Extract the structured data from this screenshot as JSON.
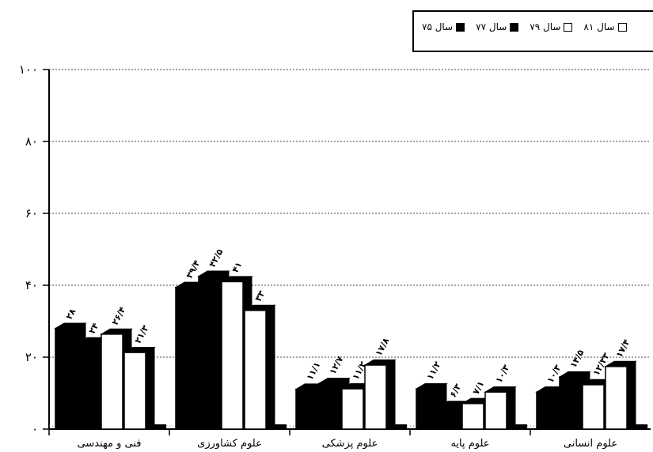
{
  "chart_data": {
    "type": "bar",
    "title": "",
    "xlabel": "",
    "ylabel": "",
    "ylim": [
      0,
      100
    ],
    "yticks": [
      0,
      20,
      40,
      60,
      80,
      100
    ],
    "ytick_labels": [
      "۰",
      "۲۰",
      "۴۰",
      "۶۰",
      "۸۰",
      "۱۰۰"
    ],
    "grid": "horizontal-dashed",
    "legend_position": "top-right",
    "categories": [
      "فنی و مهندسی",
      "علوم کشاورزی",
      "علوم پزشکی",
      "علوم پایه",
      "علوم انسانی"
    ],
    "series": [
      {
        "name": "سال ۷۵",
        "values": [
          28,
          39.4,
          11.1,
          11.2,
          10.3
        ],
        "labels": [
          "۲۸",
          "۳۹/۴",
          "۱۱/۱",
          "۱۱/۲",
          "۱۰/۳"
        ],
        "fill": "#000000"
      },
      {
        "name": "سال ۷۷",
        "values": [
          24,
          42.5,
          12.7,
          6.3,
          14.5
        ],
        "labels": [
          "۲۴",
          "۴۲/۵",
          "۱۲/۷",
          "۶/۳",
          "۱۴/۵"
        ],
        "fill": "#000000"
      },
      {
        "name": "سال ۷۹",
        "values": [
          26.4,
          41,
          11.2,
          7.1,
          12.33
        ],
        "labels": [
          "۲۶/۴",
          "۴۱",
          "۱۱/۲",
          "۷/۱",
          "۱۲/۳۳"
        ],
        "fill": "#ffffff"
      },
      {
        "name": "سال ۸۱",
        "values": [
          21.3,
          33,
          17.8,
          10.3,
          17.4
        ],
        "labels": [
          "۲۱/۳",
          "۳۳",
          "۱۷/۸",
          "۱۰/۳",
          "۱۷/۴"
        ],
        "fill": "#ffffff"
      }
    ]
  },
  "legend": {
    "items": [
      {
        "label": "سال ۷۵",
        "fill": "#000000"
      },
      {
        "label": "سال ۷۷",
        "fill": "#000000"
      },
      {
        "label": "سال ۷۹",
        "fill": "#ffffff"
      },
      {
        "label": "سال ۸۱",
        "fill": "#ffffff"
      }
    ]
  }
}
